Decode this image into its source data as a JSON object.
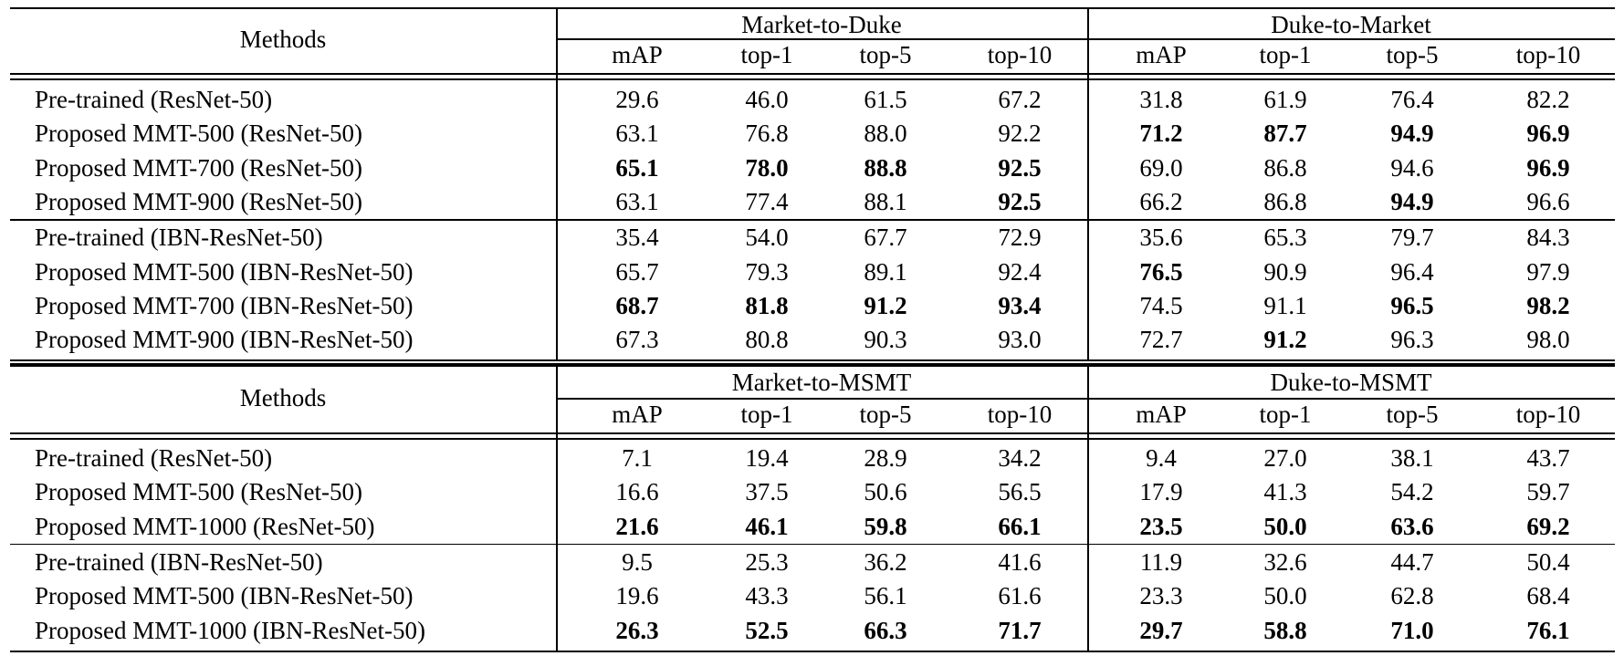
{
  "tables": [
    {
      "methods_header": "Methods",
      "groups": [
        "Market-to-Duke",
        "Duke-to-Market"
      ],
      "metrics": [
        "mAP",
        "top-1",
        "top-5",
        "top-10"
      ],
      "blocks": [
        [
          {
            "method": "Pre-trained (ResNet-50)",
            "values": [
              "29.6",
              "46.0",
              "61.5",
              "67.2",
              "31.8",
              "61.9",
              "76.4",
              "82.2"
            ],
            "bold": [
              false,
              false,
              false,
              false,
              false,
              false,
              false,
              false
            ]
          },
          {
            "method": "Proposed MMT-500 (ResNet-50)",
            "values": [
              "63.1",
              "76.8",
              "88.0",
              "92.2",
              "71.2",
              "87.7",
              "94.9",
              "96.9"
            ],
            "bold": [
              false,
              false,
              false,
              false,
              true,
              true,
              true,
              true
            ]
          },
          {
            "method": "Proposed MMT-700 (ResNet-50)",
            "values": [
              "65.1",
              "78.0",
              "88.8",
              "92.5",
              "69.0",
              "86.8",
              "94.6",
              "96.9"
            ],
            "bold": [
              true,
              true,
              true,
              true,
              false,
              false,
              false,
              true
            ]
          },
          {
            "method": "Proposed MMT-900 (ResNet-50)",
            "values": [
              "63.1",
              "77.4",
              "88.1",
              "92.5",
              "66.2",
              "86.8",
              "94.9",
              "96.6"
            ],
            "bold": [
              false,
              false,
              false,
              true,
              false,
              false,
              true,
              false
            ]
          }
        ],
        [
          {
            "method": "Pre-trained (IBN-ResNet-50)",
            "values": [
              "35.4",
              "54.0",
              "67.7",
              "72.9",
              "35.6",
              "65.3",
              "79.7",
              "84.3"
            ],
            "bold": [
              false,
              false,
              false,
              false,
              false,
              false,
              false,
              false
            ]
          },
          {
            "method": "Proposed MMT-500 (IBN-ResNet-50)",
            "values": [
              "65.7",
              "79.3",
              "89.1",
              "92.4",
              "76.5",
              "90.9",
              "96.4",
              "97.9"
            ],
            "bold": [
              false,
              false,
              false,
              false,
              true,
              false,
              false,
              false
            ]
          },
          {
            "method": "Proposed MMT-700 (IBN-ResNet-50)",
            "values": [
              "68.7",
              "81.8",
              "91.2",
              "93.4",
              "74.5",
              "91.1",
              "96.5",
              "98.2"
            ],
            "bold": [
              true,
              true,
              true,
              true,
              false,
              false,
              true,
              true
            ]
          },
          {
            "method": "Proposed MMT-900 (IBN-ResNet-50)",
            "values": [
              "67.3",
              "80.8",
              "90.3",
              "93.0",
              "72.7",
              "91.2",
              "96.3",
              "98.0"
            ],
            "bold": [
              false,
              false,
              false,
              false,
              false,
              true,
              false,
              false
            ]
          }
        ]
      ]
    },
    {
      "methods_header": "Methods",
      "groups": [
        "Market-to-MSMT",
        "Duke-to-MSMT"
      ],
      "metrics": [
        "mAP",
        "top-1",
        "top-5",
        "top-10"
      ],
      "blocks": [
        [
          {
            "method": "Pre-trained (ResNet-50)",
            "values": [
              "7.1",
              "19.4",
              "28.9",
              "34.2",
              "9.4",
              "27.0",
              "38.1",
              "43.7"
            ],
            "bold": [
              false,
              false,
              false,
              false,
              false,
              false,
              false,
              false
            ]
          },
          {
            "method": "Proposed MMT-500 (ResNet-50)",
            "values": [
              "16.6",
              "37.5",
              "50.6",
              "56.5",
              "17.9",
              "41.3",
              "54.2",
              "59.7"
            ],
            "bold": [
              false,
              false,
              false,
              false,
              false,
              false,
              false,
              false
            ]
          },
          {
            "method": "Proposed MMT-1000 (ResNet-50)",
            "values": [
              "21.6",
              "46.1",
              "59.8",
              "66.1",
              "23.5",
              "50.0",
              "63.6",
              "69.2"
            ],
            "bold": [
              true,
              true,
              true,
              true,
              true,
              true,
              true,
              true
            ]
          }
        ],
        [
          {
            "method": "Pre-trained (IBN-ResNet-50)",
            "values": [
              "9.5",
              "25.3",
              "36.2",
              "41.6",
              "11.9",
              "32.6",
              "44.7",
              "50.4"
            ],
            "bold": [
              false,
              false,
              false,
              false,
              false,
              false,
              false,
              false
            ]
          },
          {
            "method": "Proposed MMT-500 (IBN-ResNet-50)",
            "values": [
              "19.6",
              "43.3",
              "56.1",
              "61.6",
              "23.3",
              "50.0",
              "62.8",
              "68.4"
            ],
            "bold": [
              false,
              false,
              false,
              false,
              false,
              false,
              false,
              false
            ]
          },
          {
            "method": "Proposed MMT-1000 (IBN-ResNet-50)",
            "values": [
              "26.3",
              "52.5",
              "66.3",
              "71.7",
              "29.7",
              "58.8",
              "71.0",
              "76.1"
            ],
            "bold": [
              true,
              true,
              true,
              true,
              true,
              true,
              true,
              true
            ]
          }
        ]
      ]
    }
  ]
}
